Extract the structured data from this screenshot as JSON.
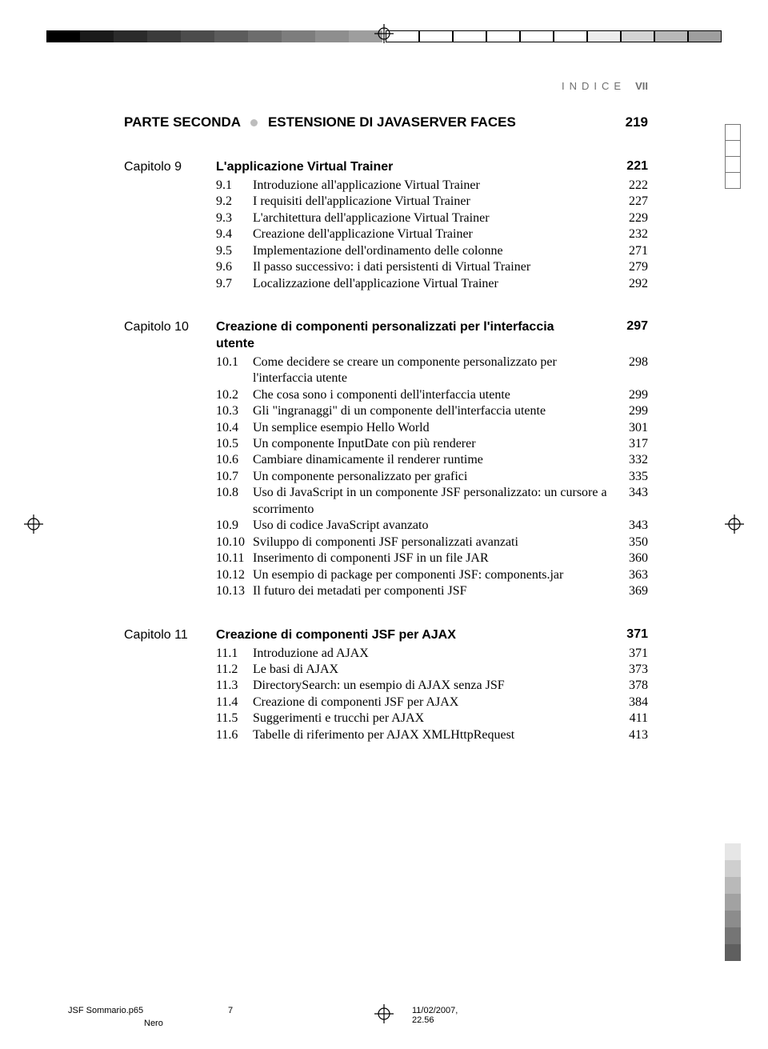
{
  "runningHead": {
    "label": "INDICE",
    "pagenum": "VII"
  },
  "part": {
    "name": "PARTE SECONDA",
    "title": "ESTENSIONE DI JAVASERVER FACES",
    "page": "219"
  },
  "chapters": [
    {
      "label": "Capitolo 9",
      "title": "L'applicazione Virtual Trainer",
      "page": "221",
      "entries": [
        {
          "num": "9.1",
          "text": "Introduzione all'applicazione Virtual Trainer",
          "page": "222"
        },
        {
          "num": "9.2",
          "text": "I requisiti dell'applicazione Virtual Trainer",
          "page": "227"
        },
        {
          "num": "9.3",
          "text": "L'architettura dell'applicazione Virtual Trainer",
          "page": "229"
        },
        {
          "num": "9.4",
          "text": "Creazione dell'applicazione Virtual Trainer",
          "page": "232"
        },
        {
          "num": "9.5",
          "text": "Implementazione dell'ordinamento delle colonne",
          "page": "271"
        },
        {
          "num": "9.6",
          "text": "Il passo successivo: i dati persistenti di Virtual Trainer",
          "page": "279"
        },
        {
          "num": "9.7",
          "text": "Localizzazione dell'applicazione Virtual Trainer",
          "page": "292"
        }
      ]
    },
    {
      "label": "Capitolo 10",
      "title": "Creazione di componenti personalizzati per l'interfaccia utente",
      "page": "297",
      "entries": [
        {
          "num": "10.1",
          "text": "Come decidere se creare un componente personalizzato per l'interfaccia utente",
          "page": "298"
        },
        {
          "num": "10.2",
          "text": "Che cosa sono i componenti dell'interfaccia utente",
          "page": "299"
        },
        {
          "num": "10.3",
          "text": "Gli \"ingranaggi\" di un componente dell'interfaccia utente",
          "page": "299"
        },
        {
          "num": "10.4",
          "text": "Un semplice esempio Hello World",
          "page": "301"
        },
        {
          "num": "10.5",
          "text": "Un componente InputDate con più renderer",
          "page": "317"
        },
        {
          "num": "10.6",
          "text": "Cambiare dinamicamente il renderer runtime",
          "page": "332"
        },
        {
          "num": "10.7",
          "text": "Un componente personalizzato per grafici",
          "page": "335"
        },
        {
          "num": "10.8",
          "text": "Uso di JavaScript in un componente JSF personalizzato: un cursore a scorrimento",
          "page": "343"
        },
        {
          "num": "10.9",
          "text": "Uso di codice JavaScript avanzato",
          "page": "343"
        },
        {
          "num": "10.10",
          "text": "Sviluppo di componenti JSF personalizzati avanzati",
          "page": "350"
        },
        {
          "num": "10.11",
          "text": "Inserimento di componenti JSF in un file JAR",
          "page": "360"
        },
        {
          "num": "10.12",
          "text": "Un esempio di package per componenti JSF: components.jar",
          "page": "363"
        },
        {
          "num": "10.13",
          "text": "Il futuro dei metadati per componenti JSF",
          "page": "369"
        }
      ]
    },
    {
      "label": "Capitolo 11",
      "title": "Creazione di componenti JSF per AJAX",
      "page": "371",
      "entries": [
        {
          "num": "11.1",
          "text": "Introduzione ad AJAX",
          "page": "371"
        },
        {
          "num": "11.2",
          "text": "Le basi di AJAX",
          "page": "373"
        },
        {
          "num": "11.3",
          "text": "DirectorySearch: un esempio di AJAX senza JSF",
          "page": "378"
        },
        {
          "num": "11.4",
          "text": "Creazione di componenti JSF per AJAX",
          "page": "384"
        },
        {
          "num": "11.5",
          "text": "Suggerimenti e trucchi per AJAX",
          "page": "411"
        },
        {
          "num": "11.6",
          "text": "Tabelle di riferimento per AJAX XMLHttpRequest",
          "page": "413"
        }
      ]
    }
  ],
  "slug": {
    "file": "JSF Sommario.p65",
    "folio": "7",
    "timestamp": "11/02/2007, 22.56",
    "color": "Nero"
  },
  "crosshairSvg": "<svg viewBox='0 0 24 24'><circle cx='12' cy='12' r='7' fill='none' stroke='#000' stroke-width='1.2'/><line x1='12' y1='0' x2='12' y2='24' stroke='#000' stroke-width='1.2'/><line x1='0' y1='12' x2='24' y2='12' stroke='#000' stroke-width='1.2'/></svg>"
}
